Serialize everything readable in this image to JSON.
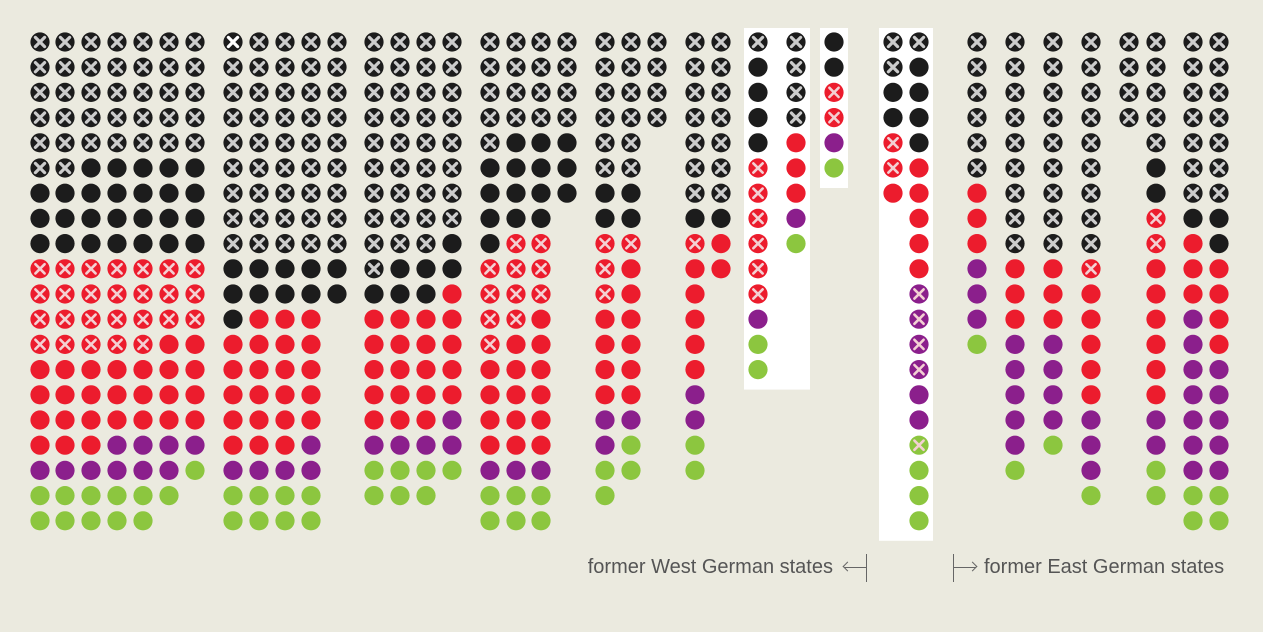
{
  "labels": {
    "west": "former West German states",
    "east": "former East German states"
  },
  "colors": {
    "background": "#ebeadf",
    "panel": "#ffffff",
    "black": "#1c1c1c",
    "red": "#ec1c2d",
    "purple": "#8b1f8c",
    "green": "#8cc63f",
    "mark_x": "#cccccc",
    "mark_x_white": "#ffffff",
    "text": "#555555"
  },
  "chart_data": {
    "type": "dot-matrix",
    "legend_code": {
      "k": "black",
      "r": "red",
      "p": "purple",
      "g": "green",
      "K": "black, crossed out",
      "R": "red, crossed out",
      "P": "purple, crossed out",
      "G": "green, crossed out",
      "W": "black, crossed out (white mark)"
    },
    "groups": [
      {
        "region": "west",
        "highlight": false,
        "columns": [
          "KKKKKKkkkRRRRrrrrpgg",
          "KKKKKKkkkRRRRrrrrpgg",
          "KKKKKkkkkRRRRrrrrpgg",
          "KKKKKkkkkRRRRrrrppgg",
          "KKKKKkkkkRRRRrrrppgg",
          "KKKKKkkkkRRRrrrrppg",
          "KKKKKkkkkRRRrrrrpg"
        ]
      },
      {
        "region": "west",
        "highlight": false,
        "columns": [
          "WKKKKKKKKkkkrrrrrpgg",
          "KKKKKKKKKkkrrrrrrpgg",
          "KKKKKKKKKkkrrrrrrpgg",
          "KKKKKKKKKkkrrrrrppgg",
          "KKKKKKKKKkk"
        ]
      },
      {
        "region": "west",
        "highlight": false,
        "columns": [
          "KKKKKKKKKKkrrrrrpgg",
          "KKKKKKKKKkkrrrrrpgg",
          "KKKKKKKKKkkrrrrrpgg",
          "KKKKKKKKkkrrrrrppg"
        ]
      },
      {
        "region": "west",
        "highlight": false,
        "columns": [
          "KKKKKkkkkRRRRrrrrpgg",
          "KKKKkkkkRRRRrrrrrpgg",
          "KKKKkkkkRRRrrrrrrpgg",
          "KKKKkkk"
        ]
      },
      {
        "region": "west",
        "highlight": false,
        "columns": [
          "KKKKKKkkRRRrrrrppgg",
          "KKKKKKkkRrrrrrrpgg",
          "KKKK"
        ]
      },
      {
        "region": "west",
        "highlight": false,
        "columns": [
          "KKKKKKKkRrrrrrppgg",
          "KKKKKKKkrr"
        ]
      },
      {
        "region": "west",
        "highlight": true,
        "columns": [
          "KkkkkRRRRRRpgg",
          "KKKKrrrpg"
        ]
      },
      {
        "region": "west",
        "highlight": true,
        "columns": [
          "kkRRpg"
        ]
      },
      {
        "region": "east",
        "highlight": true,
        "columns": [
          "KKkkRRr",
          "KkkkkrrrrrPPPPppGggg"
        ]
      },
      {
        "region": "east",
        "highlight": false,
        "columns": [
          "KKKKKKrrrpppg"
        ]
      },
      {
        "region": "east",
        "highlight": false,
        "columns": [
          "KKKKKKKKKrrrpppppg"
        ]
      },
      {
        "region": "east",
        "highlight": false,
        "columns": [
          "KKKKKKKKKrrrppppg"
        ]
      },
      {
        "region": "east",
        "highlight": false,
        "columns": [
          "KKKKKKKKKRrrrrrpppg"
        ]
      },
      {
        "region": "east",
        "highlight": false,
        "columns": [
          "KKKK"
        ]
      },
      {
        "region": "east",
        "highlight": false,
        "columns": [
          "KKKKKkkRRrrrrrrppgg"
        ]
      },
      {
        "region": "east",
        "highlight": false,
        "columns": [
          "KKKKKKKkrrrpppppppgg",
          "KKKKKKKkkrrrrpppppgg"
        ]
      }
    ]
  }
}
